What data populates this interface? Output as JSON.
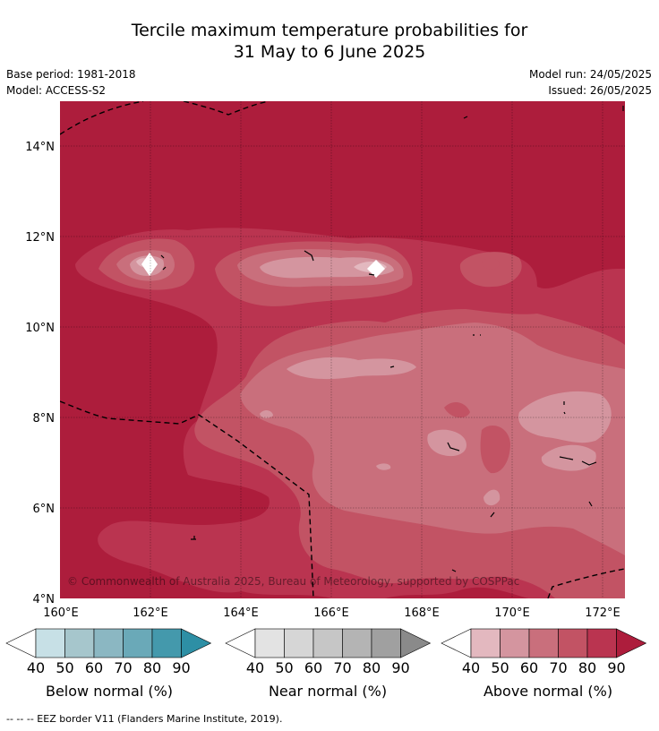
{
  "title_line1": "Tercile maximum temperature probabilities for",
  "title_line2": "31 May to 6 June 2025",
  "base_period": "Base period: 1981-2018",
  "model": "Model: ACCESS-S2",
  "model_run": "Model run: 24/05/2025",
  "issued": "Issued: 26/05/2025",
  "copyright": "© Commonwealth of Australia 2025, Bureau of Meteorology, supported by COSPPac",
  "footer": "--  --  -- EEZ border V11 (Flanders Marine Institute, 2019).",
  "map": {
    "lon_ticks": [
      "160°E",
      "162°E",
      "164°E",
      "166°E",
      "168°E",
      "170°E",
      "172°E"
    ],
    "lat_ticks": [
      "14°N",
      "12°N",
      "10°N",
      "8°N",
      "6°N",
      "4°N"
    ],
    "lon_range": [
      160,
      172.5
    ],
    "lat_range": [
      4,
      15
    ]
  },
  "legends": [
    {
      "label": "Below normal (%)",
      "ticks": [
        "40",
        "50",
        "60",
        "70",
        "80",
        "90"
      ],
      "colors": [
        "#ffffff",
        "#c7e0e6",
        "#a6c6cc",
        "#8bb7c2",
        "#6aa9b8",
        "#4499ac",
        "#2d8fa5"
      ]
    },
    {
      "label": "Near normal (%)",
      "ticks": [
        "40",
        "50",
        "60",
        "70",
        "80",
        "90"
      ],
      "colors": [
        "#ffffff",
        "#e3e3e3",
        "#d6d6d6",
        "#c6c6c6",
        "#b4b4b4",
        "#a0a0a0",
        "#8a8a8a"
      ]
    },
    {
      "label": "Above normal (%)",
      "ticks": [
        "40",
        "50",
        "60",
        "70",
        "80",
        "90"
      ],
      "colors": [
        "#ffffff",
        "#e3b8bf",
        "#d4959f",
        "#c96f7c",
        "#c25364",
        "#ba3450",
        "#ad1d3c"
      ]
    }
  ]
}
